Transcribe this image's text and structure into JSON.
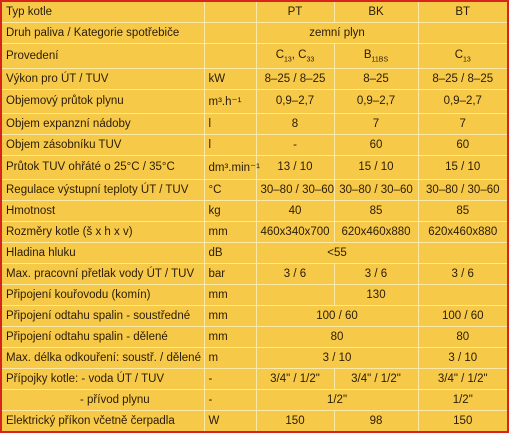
{
  "table": {
    "rows": [
      {
        "label": "Typ kotle",
        "values": [
          "PT",
          "BK",
          "BT"
        ]
      },
      {
        "label": "Druh paliva / Kategorie spotřebiče",
        "values": [
          "zemní plyn"
        ]
      },
      {
        "label": "Provedení",
        "values": [
          [
            "C",
            "13",
            ", C",
            "33"
          ],
          [
            "B",
            "11BS"
          ],
          [
            "C",
            "13"
          ]
        ]
      },
      {
        "label": "Výkon pro ÚT / TUV",
        "unit": "kW",
        "values": [
          "8–25 / 8–25",
          "8–25",
          "8–25 / 8–25"
        ]
      },
      {
        "label": "Objemový průtok plynu",
        "unit": "m³.h⁻¹",
        "values": [
          "0,9–2,7",
          "0,9–2,7",
          "0,9–2,7"
        ]
      },
      {
        "label": "Objem expanzní nádoby",
        "unit": "l",
        "values": [
          "8",
          "7",
          "7"
        ]
      },
      {
        "label": "Objem zásobníku TUV",
        "unit": "l",
        "values": [
          "-",
          "60",
          "60"
        ]
      },
      {
        "label": "Průtok TUV ohřáté o 25°C / 35°C",
        "unit": "dm³.min⁻¹",
        "values": [
          "13 / 10",
          "15 / 10",
          "15 / 10"
        ]
      },
      {
        "label": "Regulace výstupní teploty ÚT / TUV",
        "unit": "°C",
        "values": [
          "30–80 / 30–60",
          "30–80 / 30–60",
          "30–80 / 30–60"
        ]
      },
      {
        "label": "Hmotnost",
        "unit": "kg",
        "values": [
          "40",
          "85",
          "85"
        ]
      },
      {
        "label": "Rozměry kotle (š x h x v)",
        "unit": "mm",
        "values": [
          "460x340x700",
          "620x460x880",
          "620x460x880"
        ]
      },
      {
        "label": "Hladina hluku",
        "unit": "dB",
        "values": [
          "<55"
        ]
      },
      {
        "label": "Max. pracovní přetlak vody ÚT / TUV",
        "unit": "bar",
        "values": [
          "3 / 6",
          "3 / 6",
          "3 / 6"
        ]
      },
      {
        "label": "Připojení kouřovodu (komín)",
        "unit": "mm",
        "values": [
          null,
          "130",
          null
        ]
      },
      {
        "label": "Připojení odtahu spalin - soustředné",
        "unit": "mm",
        "values": [
          "100 / 60",
          "100 / 60"
        ]
      },
      {
        "label": "Připojení odtahu spalin - dělené",
        "unit": "mm",
        "values": [
          "80",
          "80"
        ]
      },
      {
        "label": "Max. délka odkouření: soustř. / dělené",
        "unit": "m",
        "values": [
          "3 / 10",
          "3 / 10"
        ]
      },
      {
        "label": "Přípojky kotle:  - voda ÚT / TUV",
        "unit": "-",
        "values": [
          "3/4\" / 1/2\"",
          "3/4\" / 1/2\"",
          "3/4\" / 1/2\""
        ]
      },
      {
        "label": "- přívod plynu",
        "unit": "-",
        "values": [
          "1/2\"",
          "1/2\""
        ]
      },
      {
        "label": "Elektrický příkon včetně čerpadla",
        "unit": "W",
        "values": [
          "150",
          "98",
          "150"
        ]
      }
    ]
  }
}
